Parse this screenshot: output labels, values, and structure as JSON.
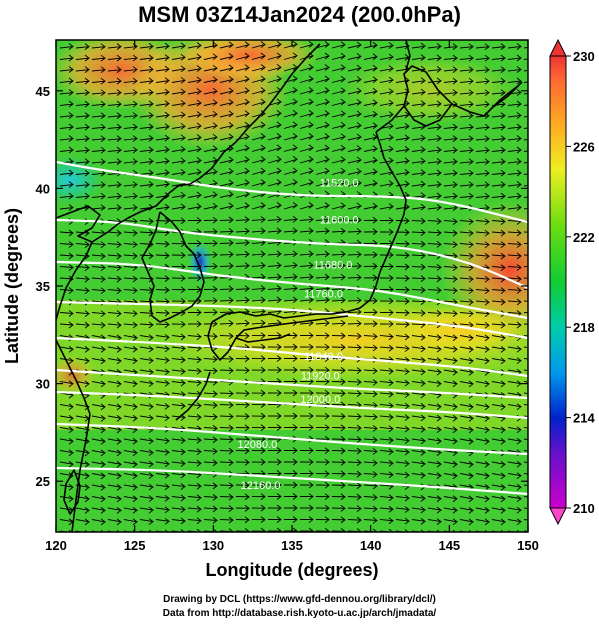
{
  "title": "MSM 03Z14Jan2024 (200.0hPa)",
  "credits": {
    "line1": "Drawing by DCL (https://www.gfd-dennou.org/library/dcl/)",
    "line2": "Data from http://database.rish.kyoto-u.ac.jp/arch/jmadata/"
  },
  "map": {
    "xlabel": "Longitude (degrees)",
    "ylabel": "Latitude  (degrees)",
    "x_ticks": [
      "120",
      "125",
      "130",
      "135",
      "140",
      "145",
      "150"
    ],
    "y_ticks": [
      "25",
      "30",
      "35",
      "40",
      "45"
    ],
    "lon_range": [
      120,
      150
    ],
    "lat_range": [
      22.4,
      47.6
    ],
    "contour_labels": [
      {
        "text": "11520.0",
        "lon": 138.0,
        "lat": 40.1
      },
      {
        "text": "11600.0",
        "lon": 138.0,
        "lat": 38.2
      },
      {
        "text": "11680.0",
        "lon": 137.6,
        "lat": 35.9
      },
      {
        "text": "11760.0",
        "lon": 137.0,
        "lat": 34.4
      },
      {
        "text": "11840.0",
        "lon": 137.0,
        "lat": 31.2
      },
      {
        "text": "11920.0",
        "lon": 136.8,
        "lat": 30.2
      },
      {
        "text": "12000.0",
        "lon": 136.8,
        "lat": 29.0
      },
      {
        "text": "12080.0",
        "lon": 132.8,
        "lat": 26.7
      },
      {
        "text": "12160.0",
        "lon": 133.0,
        "lat": 24.6
      }
    ],
    "colors": {
      "background": "#ffffff",
      "contour": "#ffffff",
      "coast": "#000000",
      "vector": "#000000"
    }
  },
  "colorbar": {
    "ticks": [
      "210",
      "214",
      "218",
      "222",
      "226",
      "230"
    ],
    "min": 210,
    "max": 230
  }
}
